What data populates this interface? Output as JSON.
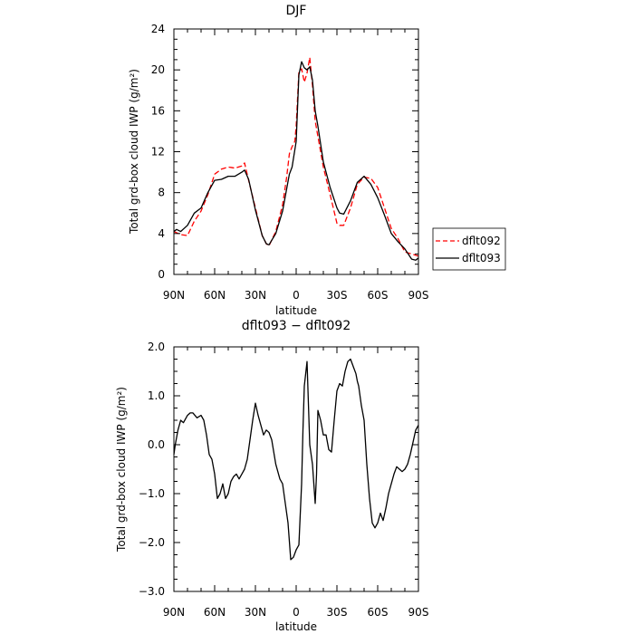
{
  "chart_data": [
    {
      "type": "line",
      "title": "DJF",
      "xlabel": "latitude",
      "ylabel": "Total grd-box cloud IWP (g/m²)",
      "xlim": [
        90,
        -90
      ],
      "ylim": [
        0,
        24
      ],
      "x_ticks": [
        {
          "value": 90,
          "label": "90N"
        },
        {
          "value": 60,
          "label": "60N"
        },
        {
          "value": 30,
          "label": "30N"
        },
        {
          "value": 0,
          "label": "0"
        },
        {
          "value": -30,
          "label": "30S"
        },
        {
          "value": -60,
          "label": "60S"
        },
        {
          "value": -90,
          "label": "90S"
        }
      ],
      "y_ticks": [
        0,
        4,
        8,
        12,
        16,
        20,
        24
      ],
      "legend": "right",
      "series": [
        {
          "name": "dflt092",
          "color": "#ff0000",
          "dash": "dashed",
          "x": [
            90,
            85,
            80,
            75,
            70,
            65,
            60,
            55,
            50,
            45,
            40,
            38,
            35,
            30,
            25,
            22,
            20,
            15,
            10,
            7,
            5,
            3,
            1,
            0,
            -2,
            -4,
            -6,
            -8,
            -10,
            -12,
            -14,
            -16,
            -20,
            -25,
            -30,
            -32,
            -35,
            -40,
            -45,
            -50,
            -55,
            -60,
            -65,
            -70,
            -75,
            -80,
            -85,
            -90
          ],
          "y": [
            4.2,
            3.9,
            3.8,
            5.2,
            6.2,
            7.8,
            9.8,
            10.3,
            10.5,
            10.4,
            10.6,
            10.9,
            9.2,
            6.5,
            3.8,
            3.0,
            2.8,
            4.2,
            6.8,
            9.5,
            11.8,
            12.5,
            13.0,
            14.5,
            19.8,
            20.1,
            18.8,
            19.7,
            21.2,
            18.5,
            15.0,
            13.5,
            10.5,
            7.8,
            5.0,
            4.8,
            4.8,
            6.5,
            8.8,
            9.5,
            9.4,
            8.5,
            6.5,
            4.5,
            3.5,
            2.2,
            2.0,
            1.8
          ]
        },
        {
          "name": "dflt093",
          "color": "#000000",
          "dash": "solid",
          "x": [
            90,
            88,
            85,
            80,
            75,
            70,
            65,
            60,
            55,
            50,
            45,
            40,
            38,
            35,
            30,
            25,
            22,
            20,
            15,
            10,
            5,
            3,
            0,
            -2,
            -4,
            -6,
            -8,
            -10,
            -12,
            -14,
            -16,
            -20,
            -25,
            -30,
            -32,
            -35,
            -40,
            -45,
            -50,
            -55,
            -60,
            -65,
            -70,
            -75,
            -80,
            -85,
            -88,
            -90
          ],
          "y": [
            4.2,
            4.4,
            4.2,
            4.8,
            6.0,
            6.5,
            8.0,
            9.2,
            9.3,
            9.6,
            9.6,
            10.0,
            10.2,
            9.3,
            6.3,
            3.8,
            3.0,
            2.9,
            4.0,
            6.2,
            9.8,
            10.5,
            13.0,
            19.5,
            20.8,
            20.2,
            20.0,
            20.3,
            19.0,
            16.0,
            14.5,
            11.0,
            8.5,
            6.5,
            6.0,
            5.9,
            7.2,
            9.0,
            9.6,
            8.8,
            7.5,
            5.8,
            4.0,
            3.2,
            2.5,
            1.5,
            1.4,
            1.6
          ]
        }
      ]
    },
    {
      "type": "line",
      "title": "dflt093 − dflt092",
      "xlabel": "latitude",
      "ylabel": "Total grd-box cloud IWP (g/m²)",
      "xlim": [
        90,
        -90
      ],
      "ylim": [
        -3.0,
        2.0
      ],
      "x_ticks": [
        {
          "value": 90,
          "label": "90N"
        },
        {
          "value": 60,
          "label": "60N"
        },
        {
          "value": 30,
          "label": "30N"
        },
        {
          "value": 0,
          "label": "0"
        },
        {
          "value": -30,
          "label": "30S"
        },
        {
          "value": -60,
          "label": "60S"
        },
        {
          "value": -90,
          "label": "90S"
        }
      ],
      "y_ticks": [
        {
          "value": 2.0,
          "label": "2.0"
        },
        {
          "value": 1.0,
          "label": "1.0"
        },
        {
          "value": 0.0,
          "label": "0.0"
        },
        {
          "value": -1.0,
          "label": "−1.0"
        },
        {
          "value": -2.0,
          "label": "−2.0"
        },
        {
          "value": -3.0,
          "label": "−3.0"
        }
      ],
      "series": [
        {
          "color": "#000000",
          "dash": "solid",
          "x": [
            90,
            89,
            87,
            85,
            83,
            80,
            78,
            76,
            73,
            70,
            68,
            66,
            64,
            62,
            60,
            58,
            56,
            54,
            52,
            50,
            48,
            46,
            44,
            42,
            40,
            38,
            36,
            34,
            32,
            30,
            28,
            26,
            24,
            22,
            20,
            18,
            15,
            12,
            10,
            8,
            6,
            4,
            2,
            0,
            -2,
            -4,
            -5,
            -6,
            -8,
            -10,
            -12,
            -14,
            -15,
            -16,
            -18,
            -20,
            -22,
            -24,
            -26,
            -28,
            -30,
            -32,
            -34,
            -36,
            -38,
            -40,
            -42,
            -44,
            -45,
            -46,
            -48,
            -50,
            -52,
            -54,
            -56,
            -58,
            -60,
            -62,
            -64,
            -66,
            -68,
            -70,
            -72,
            -74,
            -76,
            -78,
            -80,
            -82,
            -84,
            -86,
            -88,
            -90
          ],
          "y": [
            -0.2,
            0.0,
            0.3,
            0.5,
            0.45,
            0.6,
            0.65,
            0.65,
            0.55,
            0.6,
            0.5,
            0.2,
            -0.2,
            -0.3,
            -0.6,
            -1.1,
            -1.0,
            -0.8,
            -1.1,
            -1.0,
            -0.75,
            -0.65,
            -0.6,
            -0.7,
            -0.6,
            -0.5,
            -0.3,
            0.1,
            0.5,
            0.85,
            0.6,
            0.4,
            0.2,
            0.3,
            0.25,
            0.1,
            -0.4,
            -0.7,
            -0.8,
            -1.2,
            -1.6,
            -2.35,
            -2.3,
            -2.15,
            -2.05,
            -0.8,
            0.3,
            1.2,
            1.7,
            0.0,
            -0.4,
            -1.2,
            -0.6,
            0.7,
            0.5,
            0.2,
            0.2,
            -0.1,
            -0.15,
            0.5,
            1.1,
            1.25,
            1.2,
            1.5,
            1.7,
            1.75,
            1.6,
            1.45,
            1.3,
            1.2,
            0.8,
            0.5,
            -0.4,
            -1.1,
            -1.6,
            -1.7,
            -1.6,
            -1.4,
            -1.55,
            -1.3,
            -1.0,
            -0.8,
            -0.6,
            -0.45,
            -0.5,
            -0.55,
            -0.5,
            -0.4,
            -0.2,
            0.05,
            0.3,
            0.4
          ]
        }
      ]
    }
  ]
}
